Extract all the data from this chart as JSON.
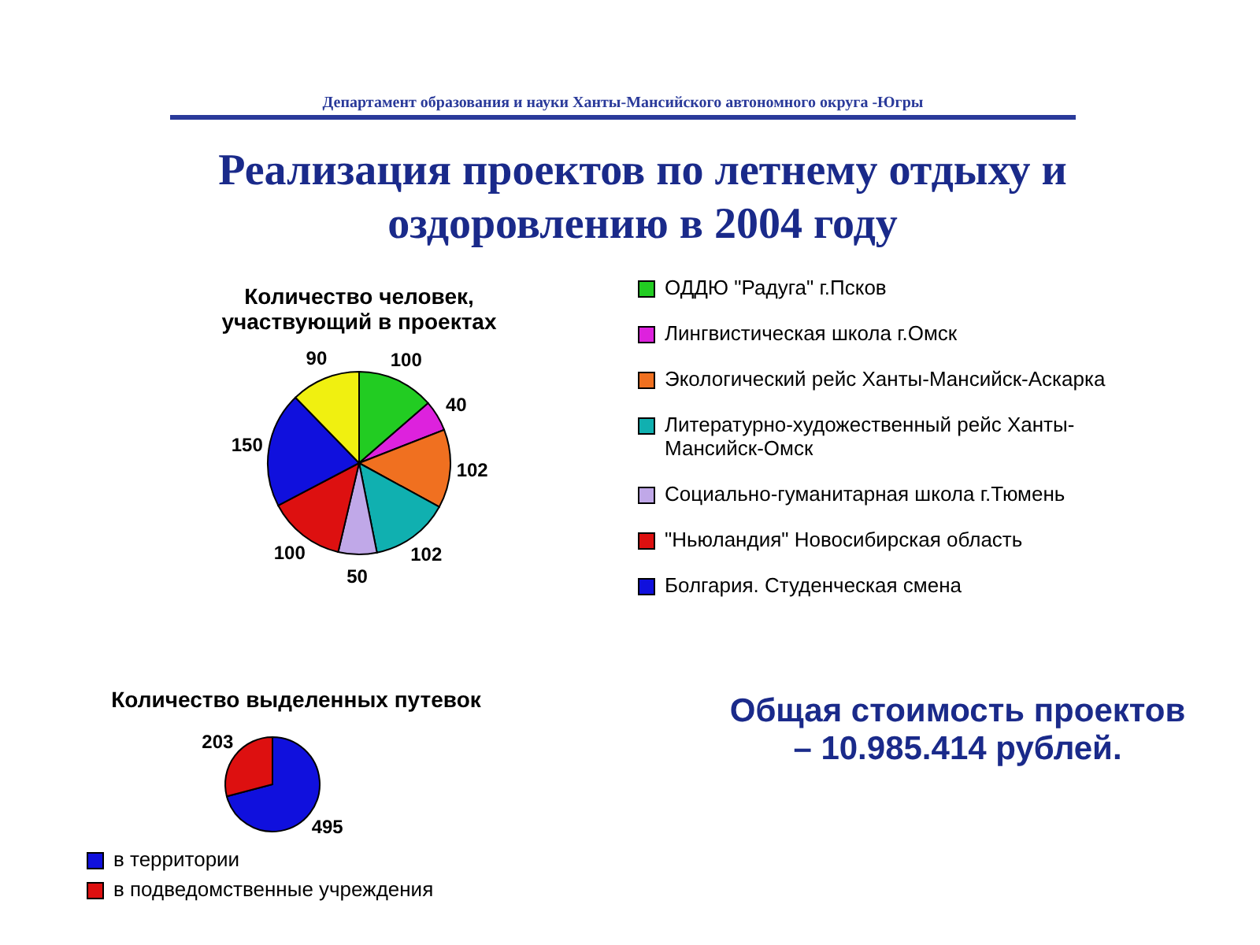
{
  "chart_data": [
    {
      "type": "other",
      "title": "Реализация проектов по летнему отдыху и оздоровлению в 2004 году",
      "subtitle": "Департамент образования и науки Ханты-Мансийского автономного округа -Югры",
      "annotations": [
        "Общая стоимость проектов",
        "– 10.985.414 рублей."
      ]
    },
    {
      "type": "pie",
      "title": "Количество человек, участвующий в проектах",
      "categories": [
        "ОДДЮ \"Радуга\" г.Псков",
        "Лингвистическая школа г.Омск",
        "Экологический рейс Ханты-Мансийск-Аскарка",
        "Литературно-художественный рейс Ханты-Мансийск-Омск",
        "Социально-гуманитарная школа г.Тюмень",
        "\"Ньюландия\" Новосибирская область",
        "Болгария. Студенческая смена",
        null
      ],
      "values": [
        100,
        40,
        102,
        102,
        50,
        100,
        150,
        90
      ],
      "colors": [
        "#22cc22",
        "#dd22dd",
        "#f07020",
        "#10b0b0",
        "#c0a8e8",
        "#dd1010",
        "#1010dd",
        "#f0f010"
      ],
      "data_labels": true,
      "legend": "right"
    },
    {
      "type": "pie",
      "title": "Количество выделенных путевок",
      "categories": [
        "в территории",
        "в подведомственные учреждения"
      ],
      "values": [
        495,
        203
      ],
      "colors": [
        "#1010dd",
        "#dd1010"
      ],
      "data_labels": true,
      "legend": "bottom"
    }
  ]
}
